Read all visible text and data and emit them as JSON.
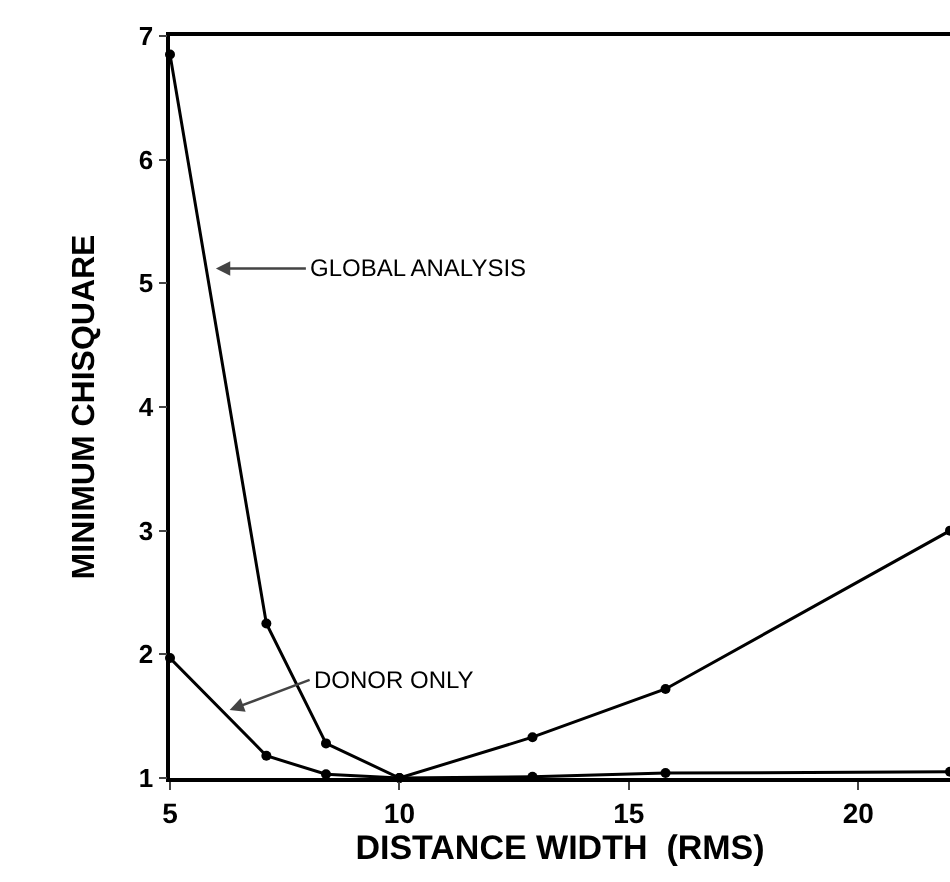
{
  "chart_data": {
    "type": "line",
    "xlabel": "DISTANCE WIDTH  (RMS)",
    "ylabel": "MINIMUM CHISQUARE",
    "x": [
      5,
      7.1,
      8.4,
      10,
      12.9,
      15.8,
      22
    ],
    "series": [
      {
        "color": "#000000",
        "values": [
          6.85,
          2.25,
          1.28,
          1.0,
          1.33,
          1.72,
          3.0
        ]
      },
      {
        "color": "#000000",
        "values": [
          1.97,
          1.18,
          1.03,
          1.0,
          1.01,
          1.04,
          1.05
        ]
      }
    ],
    "annotations": [
      {
        "text": "GLOBAL ANALYSIS",
        "x": 6.0,
        "y": 5.12
      },
      {
        "text": "DONOR ONLY",
        "x": 6.3,
        "y": 1.55
      }
    ],
    "xlim": [
      5,
      22
    ],
    "xticks": [
      5,
      10,
      15,
      20
    ],
    "ylim": [
      1,
      7
    ],
    "yticks": [
      1,
      2,
      3,
      4,
      5,
      6,
      7
    ],
    "marker": "circle",
    "line_style": "solid"
  }
}
